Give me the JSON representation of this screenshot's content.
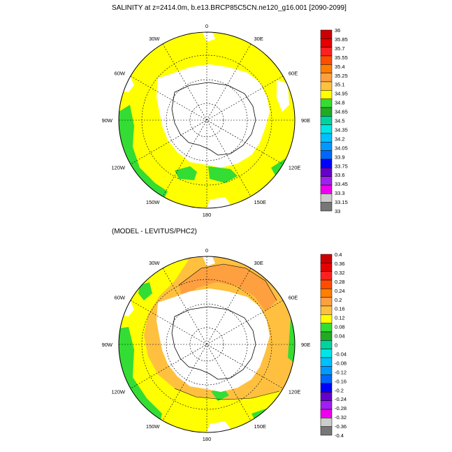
{
  "panel_top": {
    "title": "SALINITY at z=2414.0m, b.e13.BRCP85C5CN.ne120_g16.001 [2090-2099]",
    "colorbar": {
      "labels": [
        "36",
        "35.85",
        "35.7",
        "35.55",
        "35.4",
        "35.25",
        "35.1",
        "34.95",
        "34.8",
        "34.65",
        "34.5",
        "34.35",
        "34.2",
        "34.05",
        "33.9",
        "33.75",
        "33.6",
        "33.45",
        "33.3",
        "33.15",
        "33"
      ],
      "colors": [
        "#cc0000",
        "#e60000",
        "#ff2020",
        "#ff4d00",
        "#ff7f00",
        "#ffa040",
        "#ffc040",
        "#ffff00",
        "#33dd33",
        "#22aa22",
        "#00d3a0",
        "#00e5e5",
        "#00c0ff",
        "#0099ff",
        "#0066ff",
        "#0000ff",
        "#6600cc",
        "#a020f0",
        "#ee00ee",
        "#cccccc",
        "#777777"
      ]
    },
    "lon_labels": [
      "0",
      "30E",
      "60E",
      "90E",
      "120E",
      "150E",
      "180",
      "150W",
      "120W",
      "90W",
      "60W",
      "30W"
    ]
  },
  "panel_bottom": {
    "title": "(MODEL - LEVITUS/PHC2)",
    "colorbar": {
      "labels": [
        "0.4",
        "0.36",
        "0.32",
        "0.28",
        "0.24",
        "0.2",
        "0.16",
        "0.12",
        "0.08",
        "0.04",
        "0",
        "-0.04",
        "-0.08",
        "-0.12",
        "-0.16",
        "-0.2",
        "-0.24",
        "-0.28",
        "-0.32",
        "-0.36",
        "-0.4"
      ],
      "colors": [
        "#cc0000",
        "#e60000",
        "#ff2020",
        "#ff4d00",
        "#ff7f00",
        "#ffa040",
        "#ffc040",
        "#ffff00",
        "#33dd33",
        "#22aa22",
        "#00d3a0",
        "#00e5e5",
        "#00c0ff",
        "#0099ff",
        "#0066ff",
        "#0000ff",
        "#6600cc",
        "#a020f0",
        "#ee00ee",
        "#cccccc",
        "#777777"
      ]
    },
    "lon_labels": [
      "0",
      "30E",
      "60E",
      "90E",
      "120E",
      "150E",
      "180",
      "150W",
      "120W",
      "90W",
      "60W",
      "30W"
    ]
  }
}
